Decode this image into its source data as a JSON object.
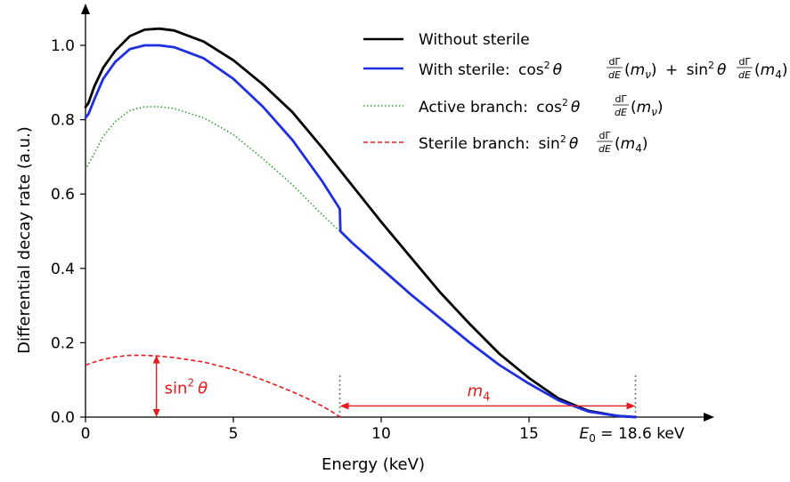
{
  "chart_data": {
    "type": "line",
    "xlabel": "Energy (keV)",
    "ylabel": "Differential decay rate (a.u.)",
    "xlim": [
      0,
      21
    ],
    "ylim": [
      0,
      1.1
    ],
    "x_ticks": [
      0,
      5,
      10,
      15
    ],
    "x_tick_labels": [
      "0",
      "5",
      "10",
      "15"
    ],
    "y_ticks": [
      0.0,
      0.2,
      0.4,
      0.6,
      0.8,
      1.0
    ],
    "y_tick_labels": [
      "0.0",
      "0.2",
      "0.4",
      "0.6",
      "0.8",
      "1.0"
    ],
    "grid": false,
    "legend_position": "top-right",
    "series": [
      {
        "name": "Without sterile",
        "color": "#000000",
        "style": "solid",
        "x": [
          0,
          0.1,
          0.3,
          0.6,
          1.0,
          1.5,
          2.0,
          2.5,
          3.0,
          4.0,
          5.0,
          6.0,
          7.0,
          8.0,
          9.0,
          10.0,
          11.0,
          12.0,
          13.0,
          14.0,
          15.0,
          16.0,
          17.0,
          18.0,
          18.6
        ],
        "y": [
          0.834,
          0.845,
          0.89,
          0.94,
          0.985,
          1.025,
          1.042,
          1.045,
          1.04,
          1.01,
          0.96,
          0.895,
          0.82,
          0.725,
          0.625,
          0.525,
          0.43,
          0.335,
          0.25,
          0.17,
          0.105,
          0.05,
          0.017,
          0.003,
          0.0
        ]
      },
      {
        "name": "With sterile",
        "label_text": "With sterile:",
        "color": "#1f2ee0",
        "style": "solid",
        "x": [
          0,
          0.1,
          0.3,
          0.6,
          1.0,
          1.5,
          2.0,
          2.5,
          3.0,
          4.0,
          5.0,
          6.0,
          7.0,
          8.0,
          8.6,
          8.62,
          9.0,
          10.0,
          11.0,
          12.0,
          13.0,
          14.0,
          15.0,
          16.0,
          17.0,
          18.0,
          18.6
        ],
        "y": [
          0.805,
          0.815,
          0.855,
          0.91,
          0.955,
          0.99,
          1.0,
          1.0,
          0.995,
          0.965,
          0.91,
          0.835,
          0.745,
          0.635,
          0.56,
          0.5,
          0.47,
          0.4,
          0.33,
          0.265,
          0.2,
          0.14,
          0.09,
          0.045,
          0.015,
          0.003,
          0.0
        ]
      },
      {
        "name": "Active branch",
        "label_text": "Active branch:",
        "color": "#2ca02c",
        "style": "dotted",
        "x": [
          0,
          0.3,
          0.6,
          1.0,
          1.5,
          2.0,
          2.5,
          3.0,
          4.0,
          5.0,
          6.0,
          7.0,
          8.0,
          8.6
        ],
        "y": [
          0.665,
          0.71,
          0.755,
          0.795,
          0.825,
          0.835,
          0.835,
          0.83,
          0.805,
          0.76,
          0.695,
          0.625,
          0.545,
          0.5
        ]
      },
      {
        "name": "Sterile branch",
        "label_text": "Sterile branch:",
        "color": "#e41a1c",
        "style": "dashed",
        "x": [
          0,
          0.3,
          0.6,
          1.0,
          1.5,
          2.0,
          2.5,
          3.0,
          4.0,
          5.0,
          6.0,
          7.0,
          7.5,
          8.0,
          8.3,
          8.5,
          8.6
        ],
        "y": [
          0.14,
          0.148,
          0.155,
          0.162,
          0.166,
          0.166,
          0.164,
          0.16,
          0.148,
          0.128,
          0.1,
          0.068,
          0.05,
          0.03,
          0.016,
          0.006,
          0.0
        ]
      }
    ],
    "vertical_lines": [
      8.6,
      18.6
    ],
    "annotations": {
      "mixing": {
        "text": "sin",
        "sup": "2",
        "symbol": "θ",
        "x": 2.4,
        "y_from": 0.0,
        "y_to": 0.166
      },
      "mass": {
        "text": "m",
        "sub": "4",
        "x_from": 8.6,
        "x_to": 18.6,
        "y": 0.03
      },
      "endpoint": {
        "sym": "E",
        "sub": "0",
        "eq": " = 18.6 keV",
        "x": 18.6
      }
    },
    "legend_formula": {
      "cos": "cos",
      "sin": "sin",
      "exp": "2",
      "theta": "θ",
      "frac_num": "dΓ",
      "frac_den": "dE",
      "m_nu": "m",
      "nu": "ν",
      "m4": "m",
      "four": "4",
      "plus": "+",
      "lpar": "(",
      "rpar": ")"
    }
  }
}
